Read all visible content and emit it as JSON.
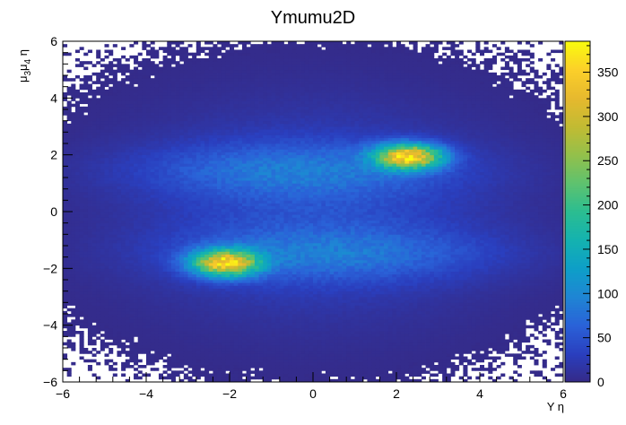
{
  "chart_data": {
    "type": "heatmap",
    "title": "Ymumu2D",
    "xlabel": "Υ η",
    "ylabel_main": "μ",
    "ylabel_sub1": "3",
    "ylabel_mid": "μ",
    "ylabel_sub2": "4",
    "ylabel_tail": " η",
    "xlim": [
      -6,
      6
    ],
    "ylim": [
      -6,
      6
    ],
    "zlim": [
      0,
      385
    ],
    "x_ticks": [
      -6,
      -4,
      -2,
      0,
      2,
      4,
      6
    ],
    "y_ticks": [
      -6,
      -4,
      -2,
      0,
      2,
      4,
      6
    ],
    "z_ticks": [
      0,
      50,
      100,
      150,
      200,
      250,
      300,
      350
    ],
    "bins": [
      120,
      120
    ],
    "palette": [
      "#352a87",
      "#2a3fbf",
      "#2a62d8",
      "#1f85d4",
      "#0e9fc8",
      "#14b2b0",
      "#2bbd91",
      "#5ec26f",
      "#93c04b",
      "#c2bb33",
      "#e6b92e",
      "#fbcf2a",
      "#f9fb0e"
    ],
    "components": [
      {
        "name": "peak-2",
        "x": -2.1,
        "y": -1.8,
        "sx": 0.55,
        "sy": 0.32,
        "amp": 320
      },
      {
        "name": "peak-1",
        "x": 2.3,
        "y": 1.95,
        "sx": 0.55,
        "sy": 0.3,
        "amp": 330
      },
      {
        "name": "band-top",
        "x": -0.5,
        "y": 1.5,
        "sx": 2.6,
        "sy": 0.65,
        "amp": 55
      },
      {
        "name": "band-bottom",
        "x": 0.6,
        "y": -1.5,
        "sx": 2.6,
        "sy": 0.65,
        "amp": 55
      },
      {
        "name": "background",
        "x": 0.0,
        "y": 0.0,
        "sx": 2.9,
        "sy": 2.4,
        "amp": 45
      }
    ]
  }
}
